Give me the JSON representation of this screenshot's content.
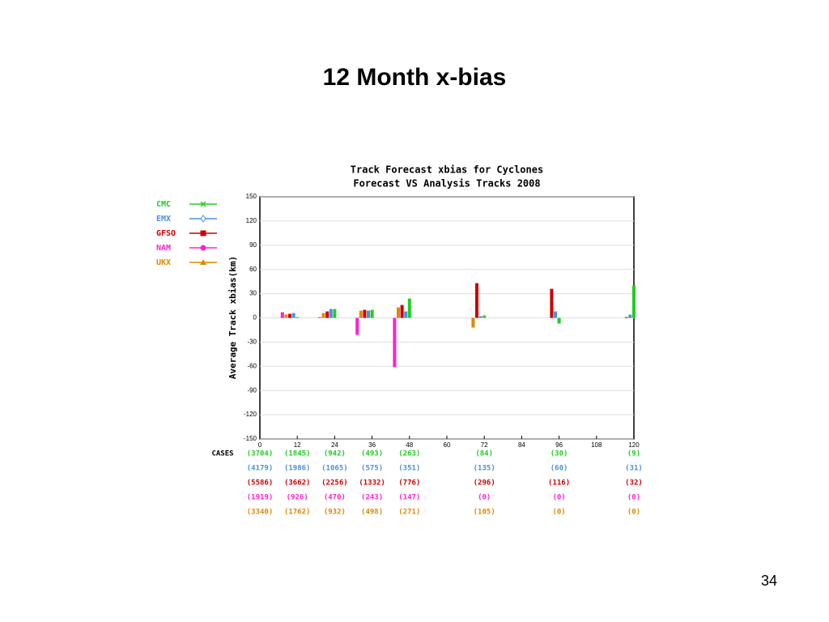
{
  "slide_title": "12 Month x-bias",
  "page_number": "34",
  "chart_data": {
    "type": "bar",
    "title": "Track Forecast xbias for Cyclones",
    "subtitle": "Forecast VS Analysis Tracks 2008",
    "y_label": "Average Track xbias(km)",
    "cases_label": "CASES",
    "x": [
      0,
      12,
      24,
      36,
      48,
      72,
      96,
      120
    ],
    "xlim": [
      0,
      120
    ],
    "xticks": [
      0,
      12,
      24,
      36,
      48,
      60,
      72,
      84,
      96,
      108,
      120
    ],
    "ylim": [
      -150,
      150
    ],
    "yticks": [
      -150,
      -120,
      -90,
      -60,
      -30,
      0,
      30,
      60,
      90,
      120,
      150
    ],
    "grid": true,
    "legend": "left",
    "series": [
      {
        "name": "CMC",
        "color": "#22cc22",
        "values": [
          0,
          1,
          11,
          10,
          24,
          3,
          -7,
          40
        ],
        "cases": [
          "(3704)",
          "(1845)",
          "(942)",
          "(493)",
          "(263)",
          "(84)",
          "(30)",
          "(9)"
        ]
      },
      {
        "name": "EMX",
        "color": "#4a90e2",
        "values": [
          0,
          6,
          11,
          9,
          8,
          2,
          8,
          4
        ],
        "cases": [
          "(4179)",
          "(1986)",
          "(1065)",
          "(575)",
          "(351)",
          "(135)",
          "(60)",
          "(31)"
        ]
      },
      {
        "name": "GFSO",
        "color": "#cc0000",
        "values": [
          0,
          5,
          8,
          10,
          16,
          43,
          36,
          1
        ],
        "cases": [
          "(5586)",
          "(3662)",
          "(2256)",
          "(1332)",
          "(776)",
          "(296)",
          "(116)",
          "(32)"
        ]
      },
      {
        "name": "NAM",
        "color": "#ff22cc",
        "values": [
          0,
          7,
          1,
          -21,
          -61,
          null,
          null,
          null
        ],
        "cases": [
          "(1919)",
          "(926)",
          "(470)",
          "(243)",
          "(147)",
          "(0)",
          "(0)",
          "(0)"
        ]
      },
      {
        "name": "UKX",
        "color": "#dd8800",
        "values": [
          0,
          4,
          6,
          9,
          13,
          -12,
          null,
          null
        ],
        "cases": [
          "(3340)",
          "(1762)",
          "(932)",
          "(498)",
          "(271)",
          "(105)",
          "(0)",
          "(0)"
        ]
      }
    ]
  }
}
